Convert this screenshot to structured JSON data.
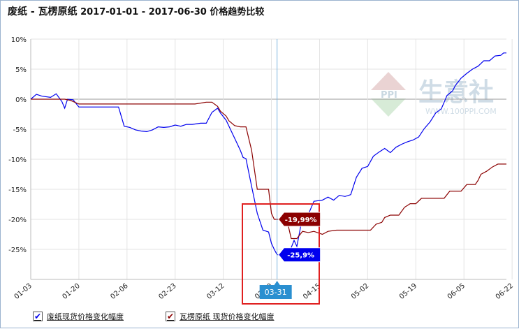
{
  "chart_data": {
    "type": "line",
    "title_main": "废纸 - 瓦楞原纸",
    "title_rest": " 2017-01-01 - 2017-06-30 价格趋势比较",
    "ylim": [
      -30,
      10
    ],
    "y_ticks": [
      "10%",
      "5%",
      "0%",
      "-5%",
      "-10%",
      "-15%",
      "-20%",
      "-25%"
    ],
    "y_tick_values": [
      10,
      5,
      0,
      -5,
      -10,
      -15,
      -20,
      -25
    ],
    "x_ticks": [
      "01-03",
      "01-20",
      "02-06",
      "02-23",
      "03-12",
      "03-29",
      "04-15",
      "05-02",
      "05-19",
      "06-05",
      "06-22"
    ],
    "crosshair_label": "03-31",
    "series": [
      {
        "name": "废纸现货价格变化幅度",
        "color": "#0000ee",
        "crosshair_label": "-25,9%",
        "points": [
          [
            0,
            0
          ],
          [
            2,
            0.8
          ],
          [
            4,
            0.5
          ],
          [
            7,
            0.3
          ],
          [
            9,
            0.9
          ],
          [
            11,
            -0.4
          ],
          [
            12,
            -1.5
          ],
          [
            13,
            0
          ],
          [
            15,
            -0.1
          ],
          [
            17,
            -1.3
          ],
          [
            20,
            -1.3
          ],
          [
            23,
            -1.3
          ],
          [
            27,
            -1.3
          ],
          [
            31,
            -1.3
          ],
          [
            33,
            -4.5
          ],
          [
            35,
            -4.7
          ],
          [
            37,
            -5.1
          ],
          [
            39,
            -5.3
          ],
          [
            41,
            -5.4
          ],
          [
            43,
            -5.1
          ],
          [
            45,
            -4.6
          ],
          [
            47,
            -4.7
          ],
          [
            49,
            -4.6
          ],
          [
            51,
            -4.3
          ],
          [
            53,
            -4.5
          ],
          [
            55,
            -4.2
          ],
          [
            57,
            -4.2
          ],
          [
            60,
            -4.0
          ],
          [
            62,
            -4.0
          ],
          [
            64,
            -2.2
          ],
          [
            66,
            -1.5
          ],
          [
            67,
            -2.3
          ],
          [
            69,
            -3.5
          ],
          [
            70,
            -4.5
          ],
          [
            72,
            -6.5
          ],
          [
            74,
            -8.5
          ],
          [
            75,
            -9.7
          ],
          [
            76,
            -9.9
          ],
          [
            78,
            -14.5
          ],
          [
            80,
            -19.0
          ],
          [
            82,
            -21.8
          ],
          [
            84,
            -22.1
          ],
          [
            85,
            -24.0
          ],
          [
            86,
            -25.0
          ],
          [
            87,
            -25.9
          ],
          [
            89,
            -25.9
          ],
          [
            91,
            -25.9
          ],
          [
            93,
            -23.5
          ],
          [
            94,
            -24.5
          ],
          [
            95,
            -22.0
          ],
          [
            96,
            -19.5
          ],
          [
            98,
            -19.2
          ],
          [
            100,
            -17.0
          ],
          [
            103,
            -16.8
          ],
          [
            105,
            -16.3
          ],
          [
            107,
            -16.8
          ],
          [
            109,
            -16.0
          ],
          [
            111,
            -16.2
          ],
          [
            113,
            -15.9
          ],
          [
            115,
            -13.0
          ],
          [
            117,
            -11.5
          ],
          [
            119,
            -11.2
          ],
          [
            121,
            -9.5
          ],
          [
            123,
            -8.8
          ],
          [
            125,
            -8.2
          ],
          [
            127,
            -8.9
          ],
          [
            129,
            -8.0
          ],
          [
            131,
            -7.5
          ],
          [
            133,
            -7.1
          ],
          [
            135,
            -6.8
          ],
          [
            137,
            -6.3
          ],
          [
            139,
            -4.9
          ],
          [
            141,
            -3.8
          ],
          [
            143,
            -2.3
          ],
          [
            145,
            -1.6
          ],
          [
            147,
            0.6
          ],
          [
            149,
            1.4
          ],
          [
            150,
            2.3
          ],
          [
            152,
            3.5
          ],
          [
            154,
            4.3
          ],
          [
            156,
            5.0
          ],
          [
            158,
            5.5
          ],
          [
            160,
            6.4
          ],
          [
            162,
            6.4
          ],
          [
            164,
            7.2
          ],
          [
            166,
            7.3
          ],
          [
            167,
            7.7
          ],
          [
            168,
            7.7
          ]
        ]
      },
      {
        "name": "瓦楞原纸 现货价格变化幅度",
        "color": "#8b0000",
        "crosshair_label": "-19,99%",
        "points": [
          [
            0,
            0
          ],
          [
            2,
            0
          ],
          [
            4,
            0
          ],
          [
            8,
            0
          ],
          [
            12,
            0
          ],
          [
            14,
            -0.2
          ],
          [
            17,
            -0.8
          ],
          [
            20,
            -0.8
          ],
          [
            25,
            -0.8
          ],
          [
            30,
            -0.8
          ],
          [
            40,
            -0.8
          ],
          [
            50,
            -0.8
          ],
          [
            58,
            -0.8
          ],
          [
            62,
            -0.5
          ],
          [
            64,
            -0.5
          ],
          [
            66,
            -1.2
          ],
          [
            67,
            -2.0
          ],
          [
            69,
            -2.8
          ],
          [
            70,
            -3.6
          ],
          [
            72,
            -4.4
          ],
          [
            74,
            -4.6
          ],
          [
            76,
            -4.6
          ],
          [
            78,
            -8.5
          ],
          [
            80,
            -15.0
          ],
          [
            84,
            -15.0
          ],
          [
            85,
            -19.0
          ],
          [
            86,
            -20.0
          ],
          [
            87,
            -20.0
          ],
          [
            88,
            -20.0
          ],
          [
            90,
            -19.1
          ],
          [
            92,
            -23.2
          ],
          [
            94,
            -23.2
          ],
          [
            96,
            -22.0
          ],
          [
            98,
            -22.2
          ],
          [
            100,
            -22.0
          ],
          [
            103,
            -22.5
          ],
          [
            105,
            -22.0
          ],
          [
            108,
            -21.8
          ],
          [
            112,
            -21.8
          ],
          [
            116,
            -21.8
          ],
          [
            120,
            -21.8
          ],
          [
            122,
            -20.8
          ],
          [
            124,
            -20.5
          ],
          [
            125,
            -19.7
          ],
          [
            127,
            -19.3
          ],
          [
            130,
            -19.3
          ],
          [
            132,
            -18.0
          ],
          [
            134,
            -17.4
          ],
          [
            136,
            -17.4
          ],
          [
            138,
            -16.5
          ],
          [
            142,
            -16.5
          ],
          [
            146,
            -16.5
          ],
          [
            148,
            -15.3
          ],
          [
            152,
            -15.3
          ],
          [
            154,
            -14.2
          ],
          [
            157,
            -14.2
          ],
          [
            158,
            -13.5
          ],
          [
            159,
            -12.5
          ],
          [
            161,
            -12.0
          ],
          [
            163,
            -11.3
          ],
          [
            165,
            -10.8
          ],
          [
            168,
            -10.8
          ]
        ]
      }
    ]
  },
  "legend": {
    "blue_label": "废纸现货价格变化幅度",
    "red_label": "瓦楞原纸 现货价格变化幅度"
  },
  "watermark": {
    "brand_text": "生意社",
    "logo_text": "PPI",
    "url_text": "WWW.100PPI.COM"
  },
  "colors": {
    "blue": "#0000ee",
    "darkred": "#8b0000",
    "highlight_box": "#e02020",
    "crosshair": "#7fb7e0",
    "badge_blue": "#2a8fd0"
  }
}
